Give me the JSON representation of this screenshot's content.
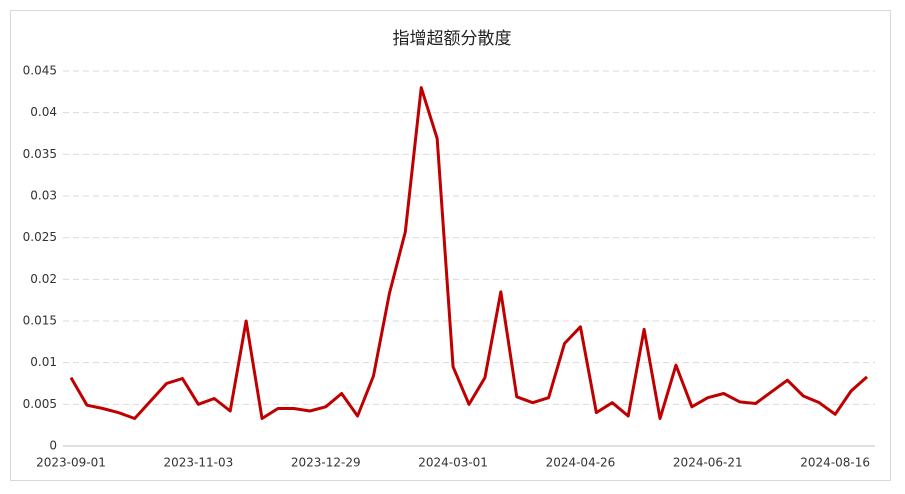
{
  "chart_data": {
    "type": "line",
    "title": "指增超额分散度",
    "categories": [
      "2023-09-01",
      null,
      null,
      null,
      null,
      null,
      null,
      null,
      "2023-11-03",
      null,
      null,
      null,
      null,
      null,
      null,
      null,
      "2023-12-29",
      null,
      null,
      null,
      null,
      null,
      null,
      null,
      "2024-03-01",
      null,
      null,
      null,
      null,
      null,
      null,
      null,
      "2024-04-26",
      null,
      null,
      null,
      null,
      null,
      null,
      null,
      "2024-06-21",
      null,
      null,
      null,
      null,
      null,
      null,
      null,
      "2024-08-16",
      null,
      null
    ],
    "series": [
      {
        "name": "指增超额分散度",
        "color": "#c00000",
        "values": [
          0.0082,
          0.0049,
          0.0045,
          0.004,
          0.0033,
          0.0054,
          0.0075,
          0.0081,
          0.005,
          0.0057,
          0.0042,
          0.015,
          0.0033,
          0.0045,
          0.0045,
          0.0042,
          0.0047,
          0.0063,
          0.0036,
          0.0084,
          0.0183,
          0.0257,
          0.043,
          0.0369,
          0.0095,
          0.005,
          0.0082,
          0.0185,
          0.0059,
          0.0052,
          0.0058,
          0.0123,
          0.0143,
          0.004,
          0.0052,
          0.0036,
          0.014,
          0.0033,
          0.0097,
          0.0047,
          0.0058,
          0.0063,
          0.0053,
          0.0051,
          0.0065,
          0.0079,
          0.006,
          0.0052,
          0.0038,
          0.0066,
          0.0083
        ]
      }
    ],
    "ylim": [
      0,
      0.045
    ],
    "yticks": [
      0,
      0.005,
      0.01,
      0.015,
      0.02,
      0.025,
      0.03,
      0.035,
      0.04,
      0.045
    ],
    "grid": true
  }
}
